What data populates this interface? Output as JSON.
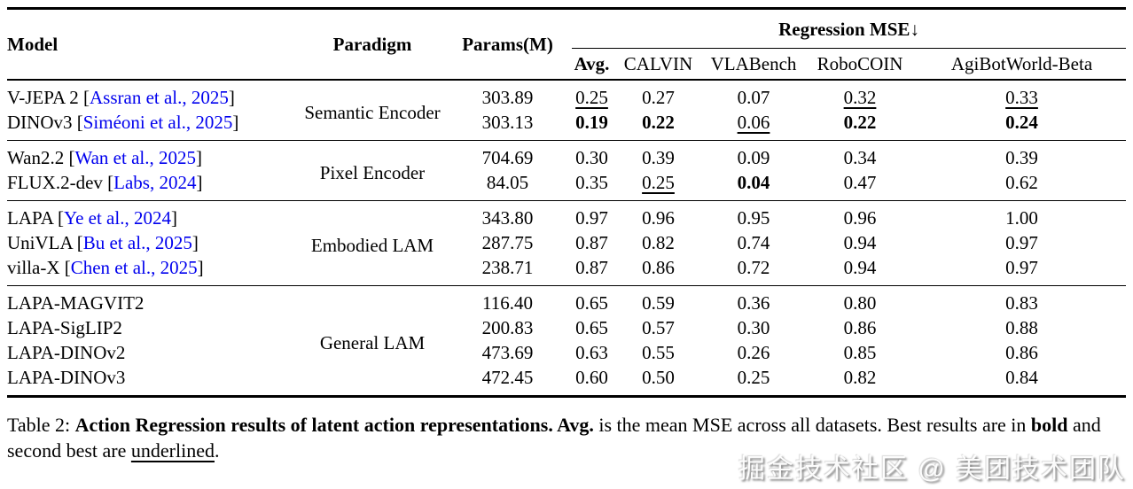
{
  "table": {
    "headers": {
      "model": "Model",
      "paradigm": "Paradigm",
      "params": "Params(M)",
      "mse_group": "Regression MSE↓",
      "mse_cols": [
        "Avg.",
        "CALVIN",
        "VLABench",
        "RoboCOIN",
        "AgiBotWorld-Beta"
      ]
    },
    "groups": [
      {
        "paradigm": "Semantic Encoder",
        "rows": [
          {
            "name": "V-JEPA 2",
            "cite": "Assran et al., 2025",
            "params": "303.89",
            "values": [
              "0.25",
              "0.27",
              "0.07",
              "0.32",
              "0.33"
            ],
            "styles": [
              "u",
              "n",
              "n",
              "u",
              "u"
            ]
          },
          {
            "name": "DINOv3",
            "cite": "Siméoni et al., 2025",
            "params": "303.13",
            "values": [
              "0.19",
              "0.22",
              "0.06",
              "0.22",
              "0.24"
            ],
            "styles": [
              "b",
              "b",
              "u",
              "b",
              "b"
            ]
          }
        ]
      },
      {
        "paradigm": "Pixel Encoder",
        "rows": [
          {
            "name": "Wan2.2",
            "cite": "Wan et al., 2025",
            "params": "704.69",
            "values": [
              "0.30",
              "0.39",
              "0.09",
              "0.34",
              "0.39"
            ],
            "styles": [
              "n",
              "n",
              "n",
              "n",
              "n"
            ]
          },
          {
            "name": "FLUX.2-dev",
            "cite": "Labs, 2024",
            "params": "84.05",
            "values": [
              "0.35",
              "0.25",
              "0.04",
              "0.47",
              "0.62"
            ],
            "styles": [
              "n",
              "u",
              "b",
              "n",
              "n"
            ]
          }
        ]
      },
      {
        "paradigm": "Embodied LAM",
        "rows": [
          {
            "name": "LAPA",
            "cite": "Ye et al., 2024",
            "params": "343.80",
            "values": [
              "0.97",
              "0.96",
              "0.95",
              "0.96",
              "1.00"
            ],
            "styles": [
              "n",
              "n",
              "n",
              "n",
              "n"
            ]
          },
          {
            "name": "UniVLA",
            "cite": "Bu et al., 2025",
            "params": "287.75",
            "values": [
              "0.87",
              "0.82",
              "0.74",
              "0.94",
              "0.97"
            ],
            "styles": [
              "n",
              "n",
              "n",
              "n",
              "n"
            ]
          },
          {
            "name": "villa-X",
            "cite": "Chen et al., 2025",
            "params": "238.71",
            "values": [
              "0.87",
              "0.86",
              "0.72",
              "0.94",
              "0.97"
            ],
            "styles": [
              "n",
              "n",
              "n",
              "n",
              "n"
            ]
          }
        ]
      },
      {
        "paradigm": "General LAM",
        "rows": [
          {
            "name": "LAPA-MAGVIT2",
            "cite": null,
            "params": "116.40",
            "values": [
              "0.65",
              "0.59",
              "0.36",
              "0.80",
              "0.83"
            ],
            "styles": [
              "n",
              "n",
              "n",
              "n",
              "n"
            ]
          },
          {
            "name": "LAPA-SigLIP2",
            "cite": null,
            "params": "200.83",
            "values": [
              "0.65",
              "0.57",
              "0.30",
              "0.86",
              "0.88"
            ],
            "styles": [
              "n",
              "n",
              "n",
              "n",
              "n"
            ]
          },
          {
            "name": "LAPA-DINOv2",
            "cite": null,
            "params": "473.69",
            "values": [
              "0.63",
              "0.55",
              "0.26",
              "0.85",
              "0.86"
            ],
            "styles": [
              "n",
              "n",
              "n",
              "n",
              "n"
            ]
          },
          {
            "name": "LAPA-DINOv3",
            "cite": null,
            "params": "472.45",
            "values": [
              "0.60",
              "0.50",
              "0.25",
              "0.82",
              "0.84"
            ],
            "styles": [
              "n",
              "n",
              "n",
              "n",
              "n"
            ]
          }
        ]
      }
    ]
  },
  "caption": {
    "segments": [
      {
        "text": "Table 2: ",
        "style": "n"
      },
      {
        "text": "Action Regression results of latent action representations. Avg.",
        "style": "b"
      },
      {
        "text": " is the mean MSE across all datasets. Best results are in ",
        "style": "n"
      },
      {
        "text": "bold",
        "style": "b"
      },
      {
        "text": " and second best are ",
        "style": "n"
      },
      {
        "text": "underlined",
        "style": "u"
      },
      {
        "text": ".",
        "style": "n"
      }
    ]
  },
  "watermark": "掘金技术社区 @ 美团技术团队",
  "colors": {
    "citation_link": "#0000EE",
    "rule": "#000000"
  }
}
